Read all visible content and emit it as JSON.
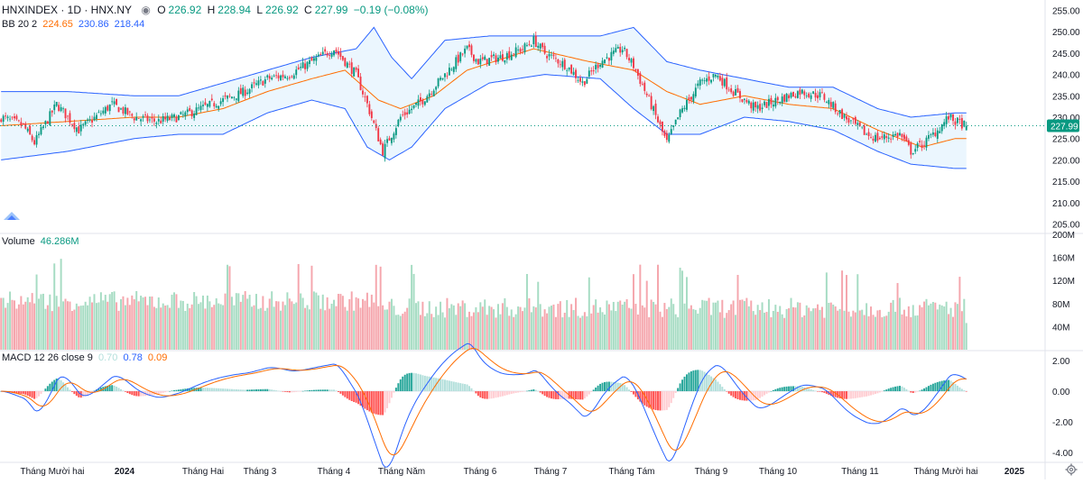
{
  "header": {
    "symbol": "HNXINDEX · 1D · HNX.NY",
    "ohlc": {
      "o_label": "O",
      "o": "226.92",
      "h_label": "H",
      "h": "228.94",
      "l_label": "L",
      "l": "226.92",
      "c_label": "C",
      "c": "227.99",
      "change": "−0.19 (−0.08%)"
    }
  },
  "indicators": {
    "bb": {
      "label": "BB 20 2",
      "basis": "224.65",
      "upper": "230.86",
      "lower": "218.44"
    },
    "volume": {
      "label": "Volume",
      "value": "46.286M"
    },
    "macd": {
      "label": "MACD 12 26 close 9",
      "hist": "0.70",
      "macd": "0.78",
      "signal": "0.09"
    }
  },
  "colors": {
    "up": "#089981",
    "down": "#f23645",
    "up_vol": "#a6dcc3",
    "down_vol": "#f5a6ad",
    "bb_line": "#2962ff",
    "bb_fill": "#e3f2fd",
    "basis": "#ff6d00",
    "macd_line": "#2962ff",
    "signal_line": "#ff6d00",
    "hist_up_strong": "#26a69a",
    "hist_up_weak": "#b2dfdb",
    "hist_down_strong": "#ff5252",
    "hist_down_weak": "#ffcdd2"
  },
  "chart_data": [
    {
      "type": "candlestick",
      "panel": "price",
      "last_price": "227.99",
      "y_ticks": [
        "255.00",
        "250.00",
        "245.00",
        "240.00",
        "235.00",
        "230.00",
        "225.00",
        "220.00",
        "215.00",
        "210.00",
        "205.00"
      ],
      "ylim": [
        203,
        257
      ],
      "x_labels": [
        "Tháng Mười hai",
        "2024",
        "Tháng Hai",
        "Tháng 3",
        "Tháng 4",
        "Tháng Năm",
        "Tháng 6",
        "Tháng 7",
        "Tháng Tám",
        "Tháng 9",
        "Tháng 10",
        "Tháng 11",
        "Tháng Mười hai",
        "2025"
      ],
      "close_keypoints": [
        [
          0,
          230
        ],
        [
          10,
          228
        ],
        [
          15,
          224
        ],
        [
          25,
          233
        ],
        [
          35,
          227
        ],
        [
          40,
          229
        ],
        [
          50,
          233
        ],
        [
          60,
          230
        ],
        [
          70,
          229
        ],
        [
          80,
          230
        ],
        [
          90,
          232
        ],
        [
          100,
          234
        ],
        [
          110,
          236
        ],
        [
          120,
          239
        ],
        [
          130,
          240
        ],
        [
          140,
          243
        ],
        [
          150,
          246
        ],
        [
          160,
          240
        ],
        [
          165,
          233
        ],
        [
          172,
          222
        ],
        [
          180,
          230
        ],
        [
          190,
          234
        ],
        [
          200,
          240
        ],
        [
          210,
          246
        ],
        [
          215,
          243
        ],
        [
          225,
          244
        ],
        [
          235,
          246
        ],
        [
          240,
          248
        ],
        [
          245,
          245
        ],
        [
          255,
          242
        ],
        [
          262,
          238
        ],
        [
          270,
          243
        ],
        [
          280,
          246
        ],
        [
          285,
          242
        ],
        [
          292,
          234
        ],
        [
          300,
          224
        ],
        [
          306,
          231
        ],
        [
          315,
          238
        ],
        [
          322,
          240
        ],
        [
          330,
          236
        ],
        [
          340,
          232
        ],
        [
          350,
          234
        ],
        [
          360,
          236
        ],
        [
          370,
          235
        ],
        [
          380,
          230
        ],
        [
          390,
          226
        ],
        [
          395,
          225
        ],
        [
          405,
          226
        ],
        [
          410,
          222
        ],
        [
          416,
          224
        ],
        [
          422,
          227
        ],
        [
          427,
          230
        ],
        [
          430,
          229
        ],
        [
          435,
          228
        ]
      ],
      "bb_upper_keypoints": [
        [
          0,
          236
        ],
        [
          30,
          236
        ],
        [
          60,
          235
        ],
        [
          80,
          235
        ],
        [
          100,
          238
        ],
        [
          120,
          241
        ],
        [
          140,
          244
        ],
        [
          160,
          246
        ],
        [
          168,
          251
        ],
        [
          176,
          244
        ],
        [
          185,
          239
        ],
        [
          200,
          248
        ],
        [
          220,
          249
        ],
        [
          245,
          249
        ],
        [
          270,
          249
        ],
        [
          285,
          251
        ],
        [
          300,
          243
        ],
        [
          315,
          241
        ],
        [
          335,
          239
        ],
        [
          355,
          237
        ],
        [
          375,
          237
        ],
        [
          395,
          232
        ],
        [
          410,
          230
        ],
        [
          430,
          231
        ]
      ],
      "bb_basis_keypoints": [
        [
          0,
          228
        ],
        [
          30,
          229
        ],
        [
          60,
          230
        ],
        [
          80,
          230
        ],
        [
          100,
          232
        ],
        [
          120,
          236
        ],
        [
          140,
          239
        ],
        [
          155,
          241
        ],
        [
          170,
          234
        ],
        [
          180,
          232
        ],
        [
          195,
          235
        ],
        [
          210,
          241
        ],
        [
          240,
          246
        ],
        [
          265,
          243
        ],
        [
          285,
          241
        ],
        [
          300,
          236
        ],
        [
          315,
          233
        ],
        [
          335,
          235
        ],
        [
          355,
          233
        ],
        [
          375,
          232
        ],
        [
          395,
          227
        ],
        [
          415,
          223
        ],
        [
          430,
          225
        ]
      ],
      "bb_lower_keypoints": [
        [
          0,
          220
        ],
        [
          30,
          222
        ],
        [
          60,
          225
        ],
        [
          80,
          226
        ],
        [
          100,
          226
        ],
        [
          120,
          231
        ],
        [
          140,
          234
        ],
        [
          155,
          232
        ],
        [
          165,
          223
        ],
        [
          175,
          220
        ],
        [
          185,
          223
        ],
        [
          200,
          232
        ],
        [
          220,
          238
        ],
        [
          245,
          240
        ],
        [
          270,
          239
        ],
        [
          285,
          232
        ],
        [
          300,
          226
        ],
        [
          315,
          226
        ],
        [
          335,
          230
        ],
        [
          355,
          229
        ],
        [
          375,
          227
        ],
        [
          395,
          222
        ],
        [
          410,
          219
        ],
        [
          430,
          218
        ]
      ]
    },
    {
      "type": "bar",
      "panel": "volume",
      "series_name": "Volume",
      "y_ticks": [
        "200M",
        "160M",
        "120M",
        "80M",
        "40M"
      ],
      "ylim": [
        0,
        200
      ]
    },
    {
      "type": "line",
      "panel": "macd",
      "y_ticks": [
        "2.00",
        "0.00",
        "-2.00",
        "-4.00"
      ],
      "ylim": [
        -4.6,
        2.6
      ]
    }
  ]
}
